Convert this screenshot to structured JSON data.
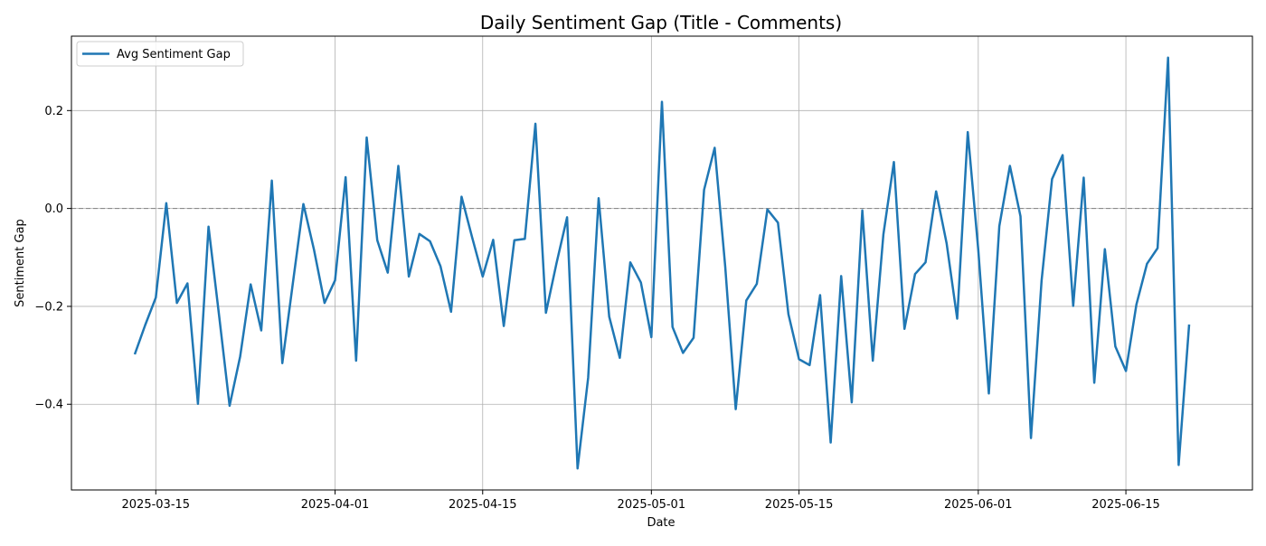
{
  "chart_data": {
    "type": "line",
    "title": "Daily Sentiment Gap (Title - Comments)",
    "xlabel": "Date",
    "ylabel": "Sentiment Gap",
    "x_range": [
      "2025-03-07",
      "2025-06-27"
    ],
    "ylim": [
      -0.575,
      0.352
    ],
    "grid": true,
    "legend_position": "top-left",
    "reference_line": {
      "y": 0.0,
      "style": "dashed",
      "color": "#808080"
    },
    "x_ticks": [
      {
        "date": "2025-03-15",
        "label": "2025-03-15"
      },
      {
        "date": "2025-04-01",
        "label": "2025-04-01"
      },
      {
        "date": "2025-04-15",
        "label": "2025-04-15"
      },
      {
        "date": "2025-05-01",
        "label": "2025-05-01"
      },
      {
        "date": "2025-05-15",
        "label": "2025-05-15"
      },
      {
        "date": "2025-06-01",
        "label": "2025-06-01"
      },
      {
        "date": "2025-06-15",
        "label": "2025-06-15"
      }
    ],
    "y_ticks": [
      {
        "value": -0.4,
        "label": "−0.4"
      },
      {
        "value": -0.2,
        "label": "−0.2"
      },
      {
        "value": 0.0,
        "label": "0.0"
      },
      {
        "value": 0.2,
        "label": "0.2"
      }
    ],
    "series": [
      {
        "name": "Avg Sentiment Gap",
        "color": "#1f77b4",
        "points": [
          {
            "x": "2025-03-13",
            "y": -0.298
          },
          {
            "x": "2025-03-14",
            "y": -0.238
          },
          {
            "x": "2025-03-15",
            "y": -0.182
          },
          {
            "x": "2025-03-16",
            "y": 0.011
          },
          {
            "x": "2025-03-17",
            "y": -0.193
          },
          {
            "x": "2025-03-18",
            "y": -0.153
          },
          {
            "x": "2025-03-19",
            "y": -0.399
          },
          {
            "x": "2025-03-20",
            "y": -0.037
          },
          {
            "x": "2025-03-21",
            "y": -0.219
          },
          {
            "x": "2025-03-22",
            "y": -0.403
          },
          {
            "x": "2025-03-23",
            "y": -0.302
          },
          {
            "x": "2025-03-24",
            "y": -0.155
          },
          {
            "x": "2025-03-25",
            "y": -0.249
          },
          {
            "x": "2025-03-26",
            "y": 0.057
          },
          {
            "x": "2025-03-27",
            "y": -0.316
          },
          {
            "x": "2025-03-28",
            "y": -0.152
          },
          {
            "x": "2025-03-29",
            "y": 0.009
          },
          {
            "x": "2025-03-30",
            "y": -0.084
          },
          {
            "x": "2025-03-31",
            "y": -0.193
          },
          {
            "x": "2025-04-01",
            "y": -0.147
          },
          {
            "x": "2025-04-02",
            "y": 0.064
          },
          {
            "x": "2025-04-03",
            "y": -0.311
          },
          {
            "x": "2025-04-04",
            "y": 0.145
          },
          {
            "x": "2025-04-05",
            "y": -0.065
          },
          {
            "x": "2025-04-06",
            "y": -0.131
          },
          {
            "x": "2025-04-07",
            "y": 0.087
          },
          {
            "x": "2025-04-08",
            "y": -0.139
          },
          {
            "x": "2025-04-09",
            "y": -0.052
          },
          {
            "x": "2025-04-10",
            "y": -0.067
          },
          {
            "x": "2025-04-11",
            "y": -0.118
          },
          {
            "x": "2025-04-12",
            "y": -0.211
          },
          {
            "x": "2025-04-13",
            "y": 0.024
          },
          {
            "x": "2025-04-14",
            "y": -0.059
          },
          {
            "x": "2025-04-15",
            "y": -0.139
          },
          {
            "x": "2025-04-16",
            "y": -0.064
          },
          {
            "x": "2025-04-17",
            "y": -0.24
          },
          {
            "x": "2025-04-18",
            "y": -0.065
          },
          {
            "x": "2025-04-19",
            "y": -0.062
          },
          {
            "x": "2025-04-20",
            "y": 0.173
          },
          {
            "x": "2025-04-21",
            "y": -0.213
          },
          {
            "x": "2025-04-22",
            "y": -0.112
          },
          {
            "x": "2025-04-23",
            "y": -0.018
          },
          {
            "x": "2025-04-24",
            "y": -0.531
          },
          {
            "x": "2025-04-25",
            "y": -0.346
          },
          {
            "x": "2025-04-26",
            "y": 0.021
          },
          {
            "x": "2025-04-27",
            "y": -0.221
          },
          {
            "x": "2025-04-28",
            "y": -0.305
          },
          {
            "x": "2025-04-29",
            "y": -0.11
          },
          {
            "x": "2025-04-30",
            "y": -0.151
          },
          {
            "x": "2025-05-01",
            "y": -0.263
          },
          {
            "x": "2025-05-02",
            "y": 0.218
          },
          {
            "x": "2025-05-03",
            "y": -0.242
          },
          {
            "x": "2025-05-04",
            "y": -0.295
          },
          {
            "x": "2025-05-05",
            "y": -0.264
          },
          {
            "x": "2025-05-06",
            "y": 0.038
          },
          {
            "x": "2025-05-07",
            "y": 0.124
          },
          {
            "x": "2025-05-08",
            "y": -0.119
          },
          {
            "x": "2025-05-09",
            "y": -0.41
          },
          {
            "x": "2025-05-10",
            "y": -0.188
          },
          {
            "x": "2025-05-11",
            "y": -0.154
          },
          {
            "x": "2025-05-12",
            "y": -0.002
          },
          {
            "x": "2025-05-13",
            "y": -0.029
          },
          {
            "x": "2025-05-14",
            "y": -0.216
          },
          {
            "x": "2025-05-15",
            "y": -0.308
          },
          {
            "x": "2025-05-16",
            "y": -0.32
          },
          {
            "x": "2025-05-17",
            "y": -0.177
          },
          {
            "x": "2025-05-18",
            "y": -0.478
          },
          {
            "x": "2025-05-19",
            "y": -0.138
          },
          {
            "x": "2025-05-20",
            "y": -0.396
          },
          {
            "x": "2025-05-21",
            "y": -0.004
          },
          {
            "x": "2025-05-22",
            "y": -0.311
          },
          {
            "x": "2025-05-23",
            "y": -0.053
          },
          {
            "x": "2025-05-24",
            "y": 0.095
          },
          {
            "x": "2025-05-25",
            "y": -0.246
          },
          {
            "x": "2025-05-26",
            "y": -0.134
          },
          {
            "x": "2025-05-27",
            "y": -0.11
          },
          {
            "x": "2025-05-28",
            "y": 0.035
          },
          {
            "x": "2025-05-29",
            "y": -0.071
          },
          {
            "x": "2025-05-30",
            "y": -0.225
          },
          {
            "x": "2025-05-31",
            "y": 0.156
          },
          {
            "x": "2025-06-01",
            "y": -0.084
          },
          {
            "x": "2025-06-02",
            "y": -0.378
          },
          {
            "x": "2025-06-03",
            "y": -0.036
          },
          {
            "x": "2025-06-04",
            "y": 0.087
          },
          {
            "x": "2025-06-05",
            "y": -0.016
          },
          {
            "x": "2025-06-06",
            "y": -0.469
          },
          {
            "x": "2025-06-07",
            "y": -0.148
          },
          {
            "x": "2025-06-08",
            "y": 0.06
          },
          {
            "x": "2025-06-09",
            "y": 0.109
          },
          {
            "x": "2025-06-10",
            "y": -0.199
          },
          {
            "x": "2025-06-11",
            "y": 0.063
          },
          {
            "x": "2025-06-12",
            "y": -0.356
          },
          {
            "x": "2025-06-13",
            "y": -0.083
          },
          {
            "x": "2025-06-14",
            "y": -0.282
          },
          {
            "x": "2025-06-15",
            "y": -0.332
          },
          {
            "x": "2025-06-16",
            "y": -0.196
          },
          {
            "x": "2025-06-17",
            "y": -0.113
          },
          {
            "x": "2025-06-18",
            "y": -0.081
          },
          {
            "x": "2025-06-19",
            "y": 0.308
          },
          {
            "x": "2025-06-20",
            "y": -0.524
          },
          {
            "x": "2025-06-21",
            "y": -0.237
          }
        ]
      }
    ]
  }
}
